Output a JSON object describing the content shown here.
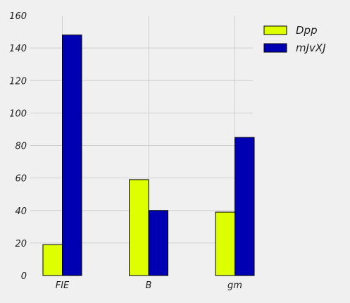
{
  "chart_data": {
    "type": "bar",
    "categories": [
      "FIE",
      "B",
      "gm"
    ],
    "series": [
      {
        "name": "Dpp",
        "values": [
          19,
          59,
          39
        ],
        "color": "#ddff00"
      },
      {
        "name": "mJvXJ",
        "values": [
          148,
          40,
          85
        ],
        "color": "#0000b3"
      }
    ],
    "ylim": [
      0,
      160
    ],
    "yticks": [
      0,
      20,
      40,
      60,
      80,
      100,
      120,
      140,
      160
    ],
    "grid": true,
    "legend_position": "top-right",
    "title": "",
    "xlabel": "",
    "ylabel": ""
  }
}
